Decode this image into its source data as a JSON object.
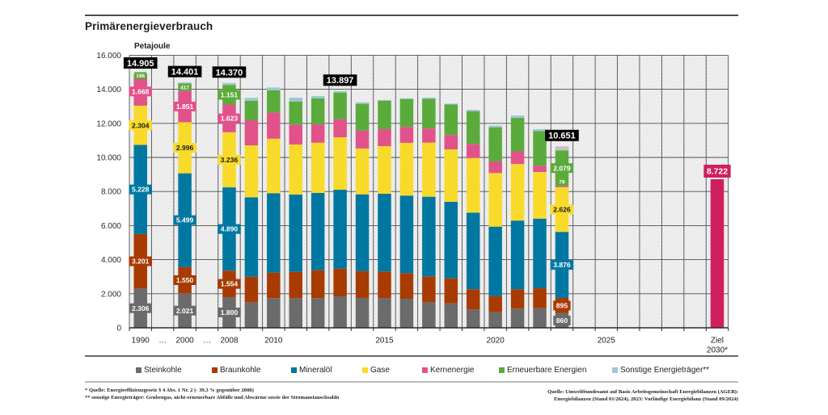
{
  "header": {
    "title": "Primärenergieverbrauch",
    "unit": "Petajoule"
  },
  "chart_data": {
    "type": "bar",
    "stacked": true,
    "title": "Primärenergieverbrauch",
    "xlabel": "",
    "ylabel": "Petajoule",
    "ylim": [
      0,
      16000
    ],
    "grid": true,
    "legend_position": "bottom",
    "y_ticks": [
      0,
      2000,
      4000,
      6000,
      8000,
      10000,
      12000,
      14000,
      16000
    ],
    "y_tick_labels": [
      "0",
      "2.000",
      "4.000",
      "6.000",
      "8.000",
      "10.000",
      "12.000",
      "14.000",
      "16.000"
    ],
    "categories": [
      "1990",
      "…",
      "2000",
      "…",
      "2008",
      "2009",
      "2010",
      "2011",
      "2012",
      "2013",
      "2014",
      "2015",
      "2016",
      "2017",
      "2018",
      "2019",
      "2020",
      "2021",
      "2022",
      "2023",
      "2024",
      "2025",
      "2026",
      "2027",
      "2028",
      "2029",
      "Ziel 2030*"
    ],
    "x_tick_labels": [
      "1990",
      "…",
      "2000",
      "…",
      "2008",
      "",
      "2010",
      "",
      "",
      "",
      "",
      "2015",
      "",
      "",
      "",
      "",
      "2020",
      "",
      "",
      "",
      "",
      "2025",
      "",
      "",
      "",
      "",
      [
        "Ziel",
        "2030*"
      ]
    ],
    "series": [
      {
        "name": "Steinkohle",
        "color": "#6b6b6b",
        "label_text_color": "#ffffff",
        "values": [
          2306,
          null,
          2021,
          null,
          1800,
          1500,
          1740,
          1740,
          1740,
          1848,
          1755,
          1740,
          1705,
          1500,
          1435,
          1075,
          915,
          1125,
          1150,
          860,
          null,
          null,
          null,
          null,
          null,
          null,
          null
        ]
      },
      {
        "name": "Braunkohle",
        "color": "#a83b02",
        "label_text_color": "#ffffff",
        "values": [
          3201,
          null,
          1550,
          null,
          1554,
          1500,
          1500,
          1545,
          1640,
          1626,
          1580,
          1565,
          1505,
          1520,
          1470,
          1185,
          950,
          1140,
          1170,
          895,
          null,
          null,
          null,
          null,
          null,
          null,
          null
        ]
      },
      {
        "name": "Mineralöl",
        "color": "#0077a1",
        "label_text_color": "#ffffff",
        "values": [
          5228,
          null,
          5499,
          null,
          4890,
          4660,
          4660,
          4535,
          4535,
          4630,
          4500,
          4565,
          4550,
          4675,
          4490,
          4500,
          4075,
          4030,
          4090,
          3876,
          null,
          null,
          null,
          null,
          null,
          null,
          null
        ]
      },
      {
        "name": "Gase",
        "color": "#f8da2b",
        "label_text_color": "#1d1d1d",
        "values": [
          2304,
          null,
          2996,
          null,
          3236,
          3050,
          3200,
          2940,
          2950,
          3081,
          2690,
          2795,
          3095,
          3175,
          3080,
          3205,
          3145,
          3320,
          2735,
          2626,
          null,
          null,
          null,
          null,
          null,
          null,
          null
        ]
      },
      {
        "name": "Kernenergie",
        "color": "#e2528a",
        "label_text_color": "#ffffff",
        "values": [
          1668,
          null,
          1851,
          null,
          1623,
          1470,
          1535,
          1170,
          1075,
          1057,
          1055,
          995,
          935,
          825,
          840,
          825,
          680,
          740,
          365,
          79,
          null,
          null,
          null,
          null,
          null,
          null,
          null
        ]
      },
      {
        "name": "Erneuerbare Energien",
        "color": "#5aab3b",
        "label_text_color": "#ffffff",
        "values": [
          196,
          null,
          417,
          null,
          1151,
          1140,
          1310,
          1355,
          1530,
          1564,
          1565,
          1675,
          1640,
          1755,
          1800,
          1925,
          2005,
          1975,
          2040,
          2079,
          null,
          null,
          null,
          null,
          null,
          null,
          null
        ]
      },
      {
        "name": "Sonstige Energieträger**",
        "color": "#9dc7d3",
        "label_text_color": "#ffffff",
        "values": [
          2,
          null,
          67,
          null,
          116,
          175,
          160,
          220,
          130,
          91,
          95,
          35,
          45,
          60,
          45,
          80,
          95,
          130,
          110,
          236,
          null,
          null,
          null,
          null,
          null,
          null,
          null
        ]
      }
    ],
    "segment_color_overrides": [
      {
        "category": "2023",
        "series": "Sonstige Energieträger**",
        "color": "#c4c4c4"
      }
    ],
    "target": {
      "category": "Ziel 2030*",
      "value": 8722,
      "label": "8.722",
      "color": "#cf1f5e"
    },
    "total_labels": [
      {
        "category": "1990",
        "text": "14.905"
      },
      {
        "category": "2000",
        "text": "14.401"
      },
      {
        "category": "2008",
        "text": "14.370"
      },
      {
        "category": "2013",
        "text": "13.897"
      },
      {
        "category": "2023",
        "text": "10.651"
      }
    ],
    "segment_labels": [
      {
        "category": "1990",
        "series": "Steinkohle",
        "text": "2.306"
      },
      {
        "category": "1990",
        "series": "Braunkohle",
        "text": "3.201"
      },
      {
        "category": "1990",
        "series": "Mineralöl",
        "text": "5.228"
      },
      {
        "category": "1990",
        "series": "Gase",
        "text": "2.304"
      },
      {
        "category": "1990",
        "series": "Kernenergie",
        "text": "1.668"
      },
      {
        "category": "1990",
        "series": "Erneuerbare Energien",
        "text": "196"
      },
      {
        "category": "2000",
        "series": "Steinkohle",
        "text": "2.021"
      },
      {
        "category": "2000",
        "series": "Braunkohle",
        "text": "1.550"
      },
      {
        "category": "2000",
        "series": "Mineralöl",
        "text": "5.499"
      },
      {
        "category": "2000",
        "series": "Gase",
        "text": "2.996"
      },
      {
        "category": "2000",
        "series": "Kernenergie",
        "text": "1.851"
      },
      {
        "category": "2000",
        "series": "Erneuerbare Energien",
        "text": "417"
      },
      {
        "category": "2008",
        "series": "Steinkohle",
        "text": "1.800"
      },
      {
        "category": "2008",
        "series": "Braunkohle",
        "text": "1.554"
      },
      {
        "category": "2008",
        "series": "Mineralöl",
        "text": "4.890"
      },
      {
        "category": "2008",
        "series": "Gase",
        "text": "3.236"
      },
      {
        "category": "2008",
        "series": "Kernenergie",
        "text": "1.623"
      },
      {
        "category": "2008",
        "series": "Erneuerbare Energien",
        "text": "1.151"
      },
      {
        "category": "2023",
        "series": "Steinkohle",
        "text": "860"
      },
      {
        "category": "2023",
        "series": "Braunkohle",
        "text": "895"
      },
      {
        "category": "2023",
        "series": "Mineralöl",
        "text": "3.876"
      },
      {
        "category": "2023",
        "series": "Gase",
        "text": "2.626"
      },
      {
        "category": "2023",
        "series": "Kernenergie",
        "text": "79",
        "box_color": "#5aab3b"
      },
      {
        "category": "2023",
        "series": "Erneuerbare Energien",
        "text": "2.079"
      }
    ]
  },
  "footnotes": [
    "* Quelle: Energieeffizienzgesetz § 4 Abs. 1 Nr. 2 (- 39,3 % gegenüber 2008)",
    "** sonstige Energieträger: Grubengas, nicht-erneuerbare Abfälle und Abwärme sowie der Stromaustauschsaldo"
  ],
  "source": [
    "Quelle: Umweltbundesamt auf Basis Arbeitsgemeinschaft Energiebilanzen (AGEB):",
    "Energiebilanzen (Stand 01/2024), 2023: Vorläufige Energiebilanz (Stand 09/2024)"
  ]
}
